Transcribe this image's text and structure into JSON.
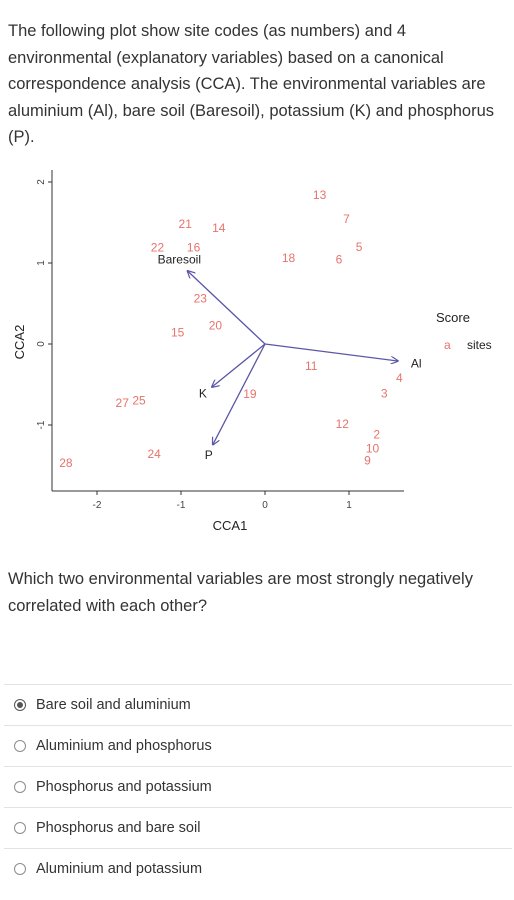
{
  "question": {
    "intro": "The following plot show site codes (as numbers) and 4 environmental (explanatory variables) based on a canonical correspondence analysis (CCA). The environmental variables are aluminium (Al), bare soil (Baresoil), potassium (K) and phosphorus (P).",
    "prompt": "Which two environmental variables are most strongly negatively correlated with each other?"
  },
  "options": [
    {
      "label": "Bare soil and aluminium",
      "selected": true
    },
    {
      "label": "Aluminium and phosphorus",
      "selected": false
    },
    {
      "label": "Phosphorus and potassium",
      "selected": false
    },
    {
      "label": "Phosphorus and bare soil",
      "selected": false
    },
    {
      "label": "Aluminium and potassium",
      "selected": false
    }
  ],
  "chart_data": {
    "type": "scatter",
    "xlabel": "CCA1",
    "ylabel": "CCA2",
    "x_ticks": [
      -2,
      -1,
      0,
      1
    ],
    "y_ticks": [
      -1,
      0,
      1,
      2
    ],
    "xlim": [
      -2.55,
      1.55
    ],
    "ylim": [
      -1.75,
      2.1
    ],
    "legend": {
      "title": "Score",
      "marker": "a",
      "label": "sites"
    },
    "site_color": "#e8736c",
    "arrow_color": "#5b57a6",
    "sites": [
      {
        "label": "13",
        "x": 0.65,
        "y": 1.83
      },
      {
        "label": "7",
        "x": 0.97,
        "y": 1.53
      },
      {
        "label": "21",
        "x": -0.95,
        "y": 1.47
      },
      {
        "label": "14",
        "x": -0.55,
        "y": 1.42
      },
      {
        "label": "22",
        "x": -1.28,
        "y": 1.18
      },
      {
        "label": "16",
        "x": -0.85,
        "y": 1.18
      },
      {
        "label": "5",
        "x": 1.12,
        "y": 1.19
      },
      {
        "label": "18",
        "x": 0.28,
        "y": 1.05
      },
      {
        "label": "6",
        "x": 0.88,
        "y": 1.03
      },
      {
        "label": "23",
        "x": -0.77,
        "y": 0.55
      },
      {
        "label": "20",
        "x": -0.59,
        "y": 0.22
      },
      {
        "label": "15",
        "x": -1.04,
        "y": 0.13
      },
      {
        "label": "11",
        "x": 0.55,
        "y": -0.28
      },
      {
        "label": "4",
        "x": 1.6,
        "y": -0.43
      },
      {
        "label": "3",
        "x": 1.42,
        "y": -0.62
      },
      {
        "label": "19",
        "x": -0.18,
        "y": -0.63
      },
      {
        "label": "27",
        "x": -1.7,
        "y": -0.74
      },
      {
        "label": "25",
        "x": -1.5,
        "y": -0.71
      },
      {
        "label": "12",
        "x": 0.92,
        "y": -1.0
      },
      {
        "label": "2",
        "x": 1.33,
        "y": -1.13
      },
      {
        "label": "10",
        "x": 1.28,
        "y": -1.3
      },
      {
        "label": "24",
        "x": -1.32,
        "y": -1.37
      },
      {
        "label": "9",
        "x": 1.22,
        "y": -1.45
      },
      {
        "label": "28",
        "x": -2.37,
        "y": -1.48
      }
    ],
    "arrows": [
      {
        "label": "Baresoil",
        "x": -0.92,
        "y": 0.9,
        "label_x": -1.02,
        "label_y": 1.03
      },
      {
        "label": "Al",
        "x": 1.58,
        "y": -0.21,
        "label_x": 1.8,
        "label_y": -0.25
      },
      {
        "label": "K",
        "x": -0.63,
        "y": -0.53,
        "label_x": -0.74,
        "label_y": -0.62
      },
      {
        "label": "P",
        "x": -0.62,
        "y": -1.24,
        "label_x": -0.67,
        "label_y": -1.38
      }
    ]
  }
}
